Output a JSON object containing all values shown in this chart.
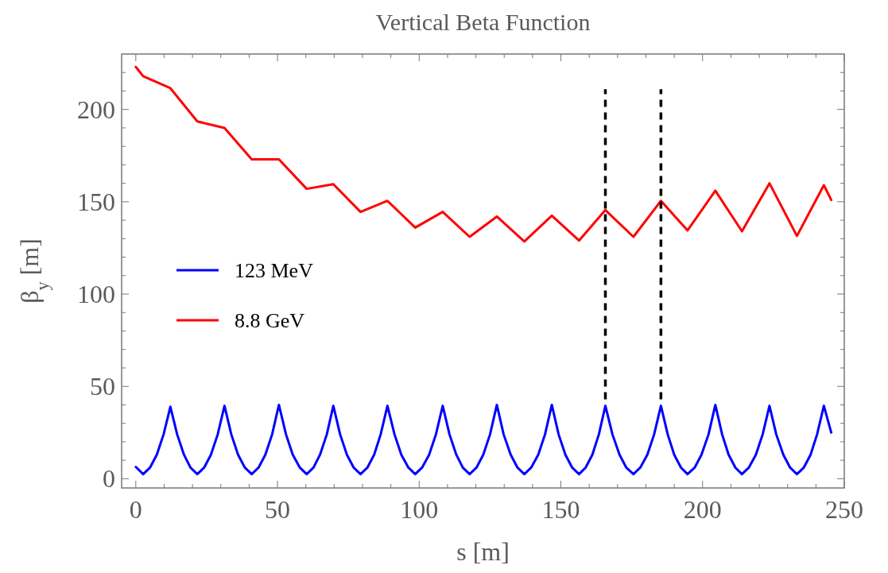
{
  "chart_data": {
    "type": "line",
    "title": "Vertical Beta Function",
    "xlabel": "s [m]",
    "ylabel": "β$_{y}$ [m]",
    "xlim": [
      -5,
      250
    ],
    "ylim": [
      -5,
      230
    ],
    "xticks": [
      0,
      {
        "value": 10,
        "label": null
      },
      {
        "value": 20,
        "label": null
      },
      {
        "value": 30,
        "label": null
      },
      {
        "value": 40,
        "label": null
      },
      50,
      {
        "value": 60,
        "label": null
      },
      {
        "value": 70,
        "label": null
      },
      {
        "value": 80,
        "label": null
      },
      {
        "value": 90,
        "label": null
      },
      100,
      {
        "value": 110,
        "label": null
      },
      {
        "value": 120,
        "label": null
      },
      {
        "value": 130,
        "label": null
      },
      {
        "value": 140,
        "label": null
      },
      150,
      {
        "value": 160,
        "label": null
      },
      {
        "value": 170,
        "label": null
      },
      {
        "value": 180,
        "label": null
      },
      {
        "value": 190,
        "label": null
      },
      200,
      {
        "value": 210,
        "label": null
      },
      {
        "value": 220,
        "label": null
      },
      {
        "value": 230,
        "label": null
      },
      {
        "value": 240,
        "label": null
      },
      250
    ],
    "yticks": [
      0,
      {
        "value": 10,
        "label": null
      },
      {
        "value": 20,
        "label": null
      },
      {
        "value": 30,
        "label": null
      },
      {
        "value": 40,
        "label": null
      },
      50,
      {
        "value": 60,
        "label": null
      },
      {
        "value": 70,
        "label": null
      },
      {
        "value": 80,
        "label": null
      },
      {
        "value": 90,
        "label": null
      },
      100,
      {
        "value": 110,
        "label": null
      },
      {
        "value": 120,
        "label": null
      },
      {
        "value": 130,
        "label": null
      },
      {
        "value": 140,
        "label": null
      },
      150,
      {
        "value": 160,
        "label": null
      },
      {
        "value": 170,
        "label": null
      },
      {
        "value": 180,
        "label": null
      },
      {
        "value": 190,
        "label": null
      },
      200,
      {
        "value": 210,
        "label": null
      },
      {
        "value": 220,
        "label": null
      }
    ],
    "grid": false,
    "legend": "left",
    "marker": "none",
    "line_style": "solid",
    "series": [
      {
        "name": "123 MeV",
        "color": "#0000ff",
        "x": [
          0,
          2.6,
          5.0,
          7.4,
          9.8,
          12.2,
          14.6,
          17.0,
          19.3,
          21.7,
          24.1,
          26.5,
          28.9,
          31.3,
          33.7,
          36.1,
          38.5,
          40.9,
          43.3,
          45.7,
          48.1,
          50.5,
          53.0,
          55.4,
          57.9,
          60.3,
          62.7,
          65.0,
          67.4,
          69.7,
          72.1,
          74.5,
          76.9,
          79.3,
          81.7,
          84.1,
          86.4,
          88.8,
          91.3,
          93.7,
          96.2,
          98.6,
          101.0,
          103.5,
          105.9,
          108.3,
          110.7,
          113.1,
          115.4,
          117.8,
          120.2,
          122.6,
          125.0,
          127.4,
          129.8,
          132.3,
          134.7,
          137.1,
          139.5,
          142.0,
          144.4,
          146.8,
          149.2,
          151.6,
          154.0,
          156.4,
          158.7,
          161.1,
          163.4,
          165.7,
          168.2,
          170.7,
          173.1,
          175.6,
          178.0,
          180.5,
          182.9,
          185.3,
          187.7,
          190.0,
          192.4,
          194.7,
          197.2,
          199.6,
          202.1,
          204.5,
          206.9,
          209.2,
          211.6,
          213.9,
          216.3,
          218.8,
          221.2,
          223.6,
          226.0,
          228.5,
          230.9,
          233.3,
          235.7,
          238.1,
          240.4,
          242.8,
          245.4
        ],
        "values": [
          6.4,
          2.5,
          6,
          13,
          24,
          39,
          24,
          13,
          6,
          2.5,
          6,
          13,
          24,
          39.5,
          24,
          13,
          6,
          2.5,
          6,
          13,
          24,
          40,
          24,
          13,
          6,
          2.5,
          6,
          13,
          24,
          39.5,
          24,
          13,
          6,
          2.5,
          6,
          13,
          24,
          39.5,
          24,
          13,
          6,
          2.5,
          6,
          13,
          24,
          39.5,
          24,
          13,
          6,
          2.5,
          6,
          13,
          24,
          40,
          24,
          13,
          6,
          2.5,
          6,
          13,
          24,
          40,
          24,
          13,
          6,
          2.5,
          6,
          13,
          24,
          39.5,
          24,
          13,
          6,
          2.5,
          6,
          13,
          24,
          39.5,
          24,
          13,
          6,
          2.5,
          6,
          13,
          24,
          40,
          24,
          13,
          6,
          2.5,
          6,
          13,
          24,
          39.5,
          24,
          13,
          6,
          2.5,
          6,
          13,
          24,
          39.5,
          25
        ]
      },
      {
        "name": "8.8 GeV",
        "color": "#ff0000",
        "x": [
          0,
          2.6,
          12.2,
          21.7,
          31.3,
          40.9,
          50.5,
          60.3,
          69.7,
          79.3,
          88.8,
          98.6,
          108.3,
          117.8,
          127.4,
          137.1,
          146.8,
          156.4,
          165.7,
          175.6,
          185.3,
          194.7,
          204.5,
          213.9,
          223.6,
          233.3,
          242.8,
          245.4
        ],
        "values": [
          223,
          218,
          211.5,
          193.5,
          190,
          173,
          173,
          157,
          159.5,
          144.5,
          150.5,
          136,
          144.5,
          131,
          142,
          128.5,
          142.5,
          129,
          145.5,
          131,
          150.5,
          134.5,
          156,
          134,
          160,
          131.5,
          159,
          151
        ]
      },
      {
        "color": "#000000",
        "line_style": "dashed",
        "x": [
          165.7,
          165.7
        ],
        "values": [
          43,
          211
        ]
      },
      {
        "color": "#000000",
        "line_style": "dashed",
        "x": [
          185.3,
          185.3
        ],
        "values": [
          43,
          211
        ]
      }
    ]
  }
}
